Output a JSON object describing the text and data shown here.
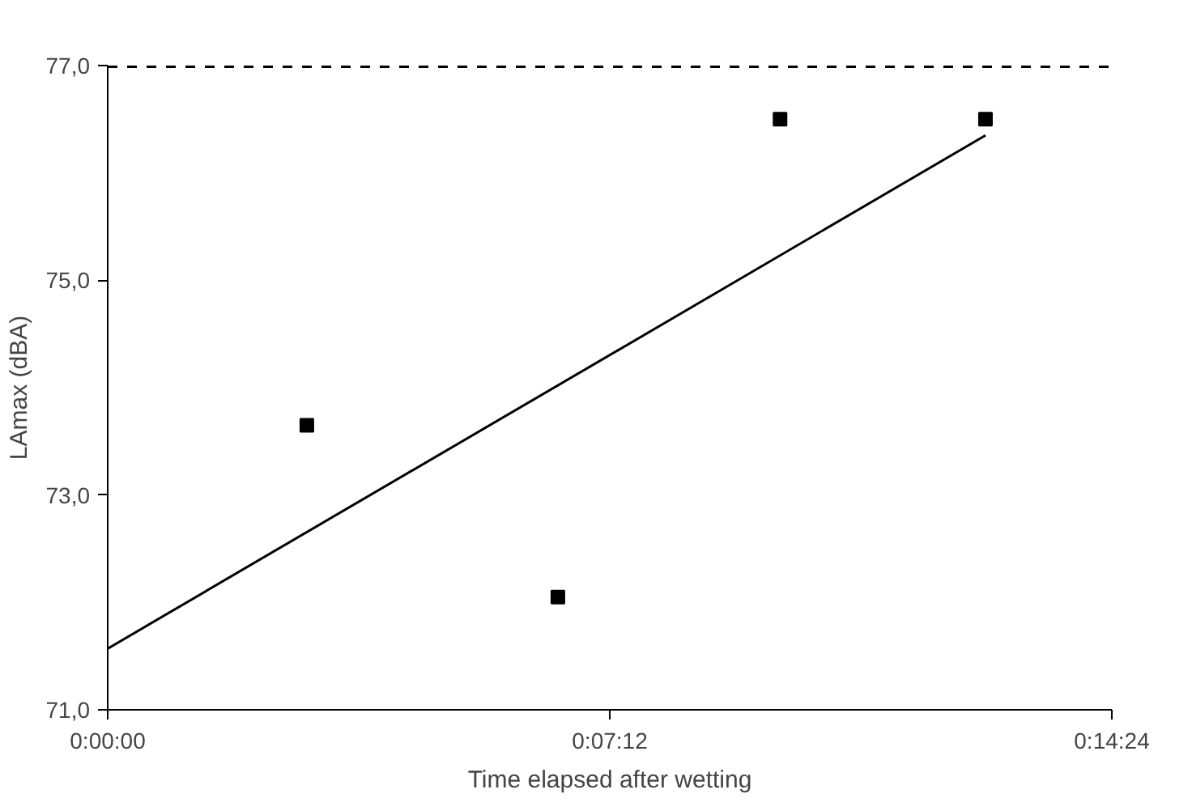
{
  "chart_data": {
    "type": "scatter",
    "xlabel": "Time elapsed after wetting",
    "ylabel": "LAmax (dBA)",
    "xlim": [
      0,
      0.24
    ],
    "xticks": [
      {
        "value": 0,
        "label": "0:00:00"
      },
      {
        "value": 0.12,
        "label": "0:07:12"
      },
      {
        "value": 0.24,
        "label": "0:14:24"
      }
    ],
    "ylim": [
      71,
      77
    ],
    "yticks": [
      {
        "value": 71,
        "label": "71,0"
      },
      {
        "value": 73,
        "label": "73,0"
      },
      {
        "value": 75,
        "label": "75,0"
      },
      {
        "value": 77,
        "label": "77,0"
      }
    ],
    "series": [
      {
        "color": "#000000",
        "x": [
          0.0476,
          0.1076,
          0.1607,
          0.2098
        ],
        "values": [
          73.65,
          72.05,
          76.5,
          76.5
        ]
      },
      {
        "type": "line",
        "marker": "none",
        "color": "#000000",
        "x": [
          0,
          0.2098
        ],
        "values": [
          71.57,
          76.35
        ]
      }
    ],
    "ref_lines": [
      {
        "axis": "y",
        "value": 77,
        "color": "#000000",
        "line_style": "dashed"
      }
    ],
    "marker": "square",
    "grid": false
  }
}
